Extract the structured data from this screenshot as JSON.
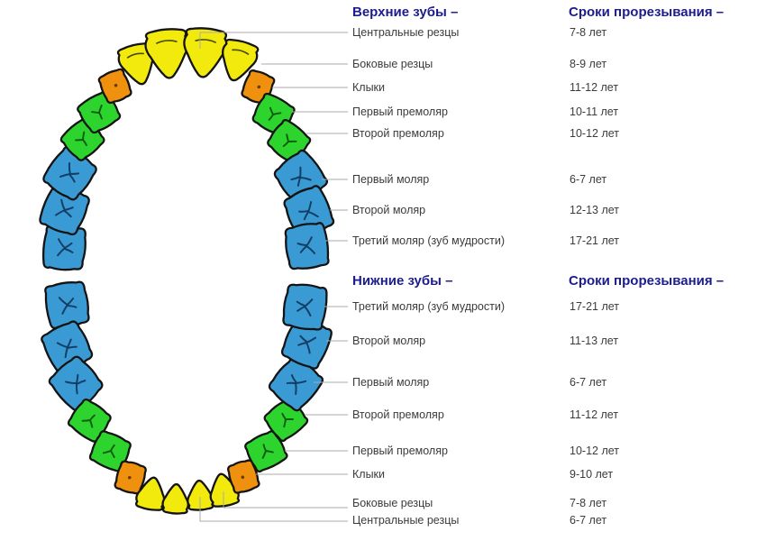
{
  "upper": {
    "heading": "Верхние зубы –",
    "timing_heading": "Сроки прорезывания –",
    "rows": [
      {
        "label": "Центральные резцы",
        "age": "7-8 лет"
      },
      {
        "label": "Боковые резцы",
        "age": "8-9 лет"
      },
      {
        "label": "Клыки",
        "age": "11-12 лет"
      },
      {
        "label": "Первый премоляр",
        "age": "10-11 лет"
      },
      {
        "label": "Второй премоляр",
        "age": "10-12 лет"
      },
      {
        "label": "Первый моляр",
        "age": "6-7 лет"
      },
      {
        "label": "Второй моляр",
        "age": "12-13 лет"
      },
      {
        "label": "Третий моляр (зуб мудрости)",
        "age": "17-21 лет"
      }
    ]
  },
  "lower": {
    "heading": "Нижние зубы –",
    "timing_heading": "Сроки прорезывания –",
    "rows": [
      {
        "label": "Третий моляр (зуб мудрости)",
        "age": "17-21 лет"
      },
      {
        "label": "Второй моляр",
        "age": "11-13 лет"
      },
      {
        "label": "Первый моляр",
        "age": "6-7 лет"
      },
      {
        "label": "Второй премоляр",
        "age": "11-12 лет"
      },
      {
        "label": "Первый премоляр",
        "age": "10-12 лет"
      },
      {
        "label": "Клыки",
        "age": "9-10 лет"
      },
      {
        "label": "Боковые резцы",
        "age": "7-8 лет"
      },
      {
        "label": "Центральные резцы",
        "age": "6-7 лет"
      }
    ]
  },
  "colors": {
    "background": "#ffffff",
    "heading": "#1c1c8c",
    "text": "#3b3b3b",
    "leader_line": "#ababab",
    "tooth_outline": "#141414",
    "incisor": "#F2E90D",
    "incisor_detail": "#4a4a00",
    "canine": "#F0900F",
    "canine_detail": "#6b3c00",
    "premolar": "#2ED42E",
    "premolar_detail": "#0d5c0d",
    "molar": "#3A9BD4",
    "molar_detail": "#123f66"
  }
}
